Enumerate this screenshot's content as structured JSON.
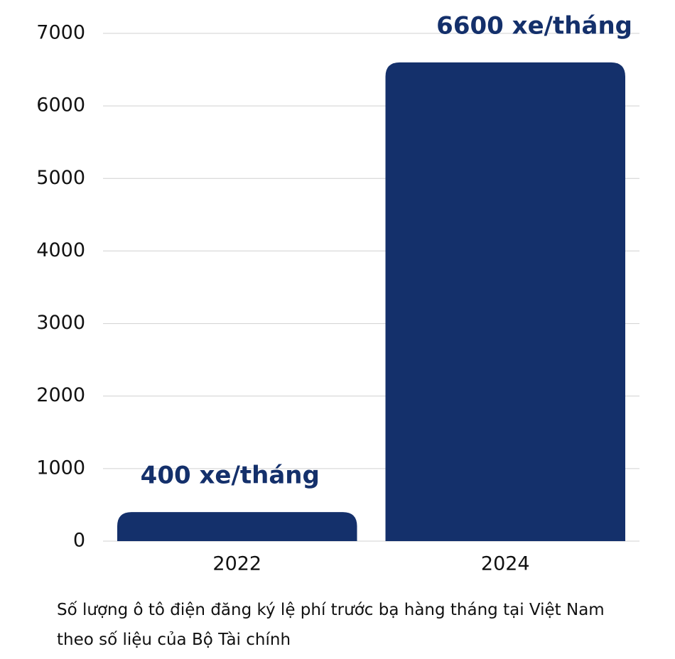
{
  "chart_data": {
    "type": "bar",
    "categories": [
      "2022",
      "2024"
    ],
    "values": [
      400,
      6600
    ],
    "value_labels": [
      "400 xe/tháng",
      "6600 xe/tháng"
    ],
    "color": "#14306b",
    "ylim": [
      0,
      7000
    ],
    "yticks": [
      0,
      1000,
      2000,
      3000,
      4000,
      5000,
      6000,
      7000
    ],
    "grid": true,
    "caption": "Số lượng ô tô điện đăng ký lệ phí trước bạ hàng tháng tại Việt Nam theo số liệu của Bộ Tài chính"
  }
}
